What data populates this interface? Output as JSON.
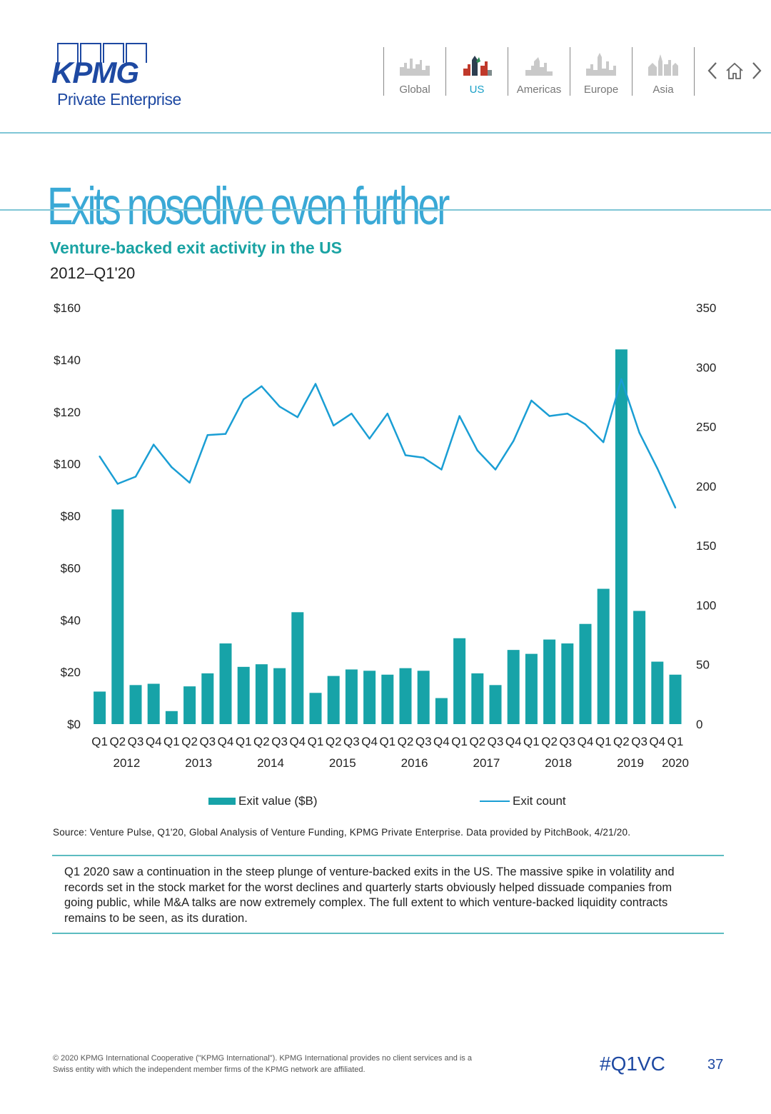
{
  "brand": {
    "logo_text": "KPMG",
    "subtitle": "Private Enterprise",
    "primary_color": "#1e49a2",
    "accent_color": "#1aa3a3"
  },
  "nav": {
    "items": [
      {
        "label": "Global",
        "active": false
      },
      {
        "label": "US",
        "active": true
      },
      {
        "label": "Americas",
        "active": false
      },
      {
        "label": "Europe",
        "active": false
      },
      {
        "label": "Asia",
        "active": false
      }
    ],
    "icons": [
      "chevron-left-icon",
      "home-icon",
      "chevron-right-icon"
    ]
  },
  "page": {
    "title": "Exits nosedive even further",
    "chart_title": "Venture-backed exit activity in the US",
    "chart_subtitle": "2012–Q1'20",
    "source": "Source: Venture Pulse, Q1'20, Global Analysis of Venture Funding, KPMG Private Enterprise. Data provided by PitchBook, 4/21/20.",
    "commentary": "Q1 2020 saw a continuation in the steep plunge of venture-backed exits in the US. The massive spike in volatility and records set in the stock market for the worst declines and quarterly starts obviously helped dissuade companies from going public, while M&A talks are now extremely complex. The full extent to which venture-backed liquidity contracts remains to be seen, as its duration."
  },
  "chart_data": {
    "type": "bar+line",
    "categories": [
      "Q1",
      "Q2",
      "Q3",
      "Q4",
      "Q1",
      "Q2",
      "Q3",
      "Q4",
      "Q1",
      "Q2",
      "Q3",
      "Q4",
      "Q1",
      "Q2",
      "Q3",
      "Q4",
      "Q1",
      "Q2",
      "Q3",
      "Q4",
      "Q1",
      "Q2",
      "Q3",
      "Q4",
      "Q1",
      "Q2",
      "Q3",
      "Q4",
      "Q1",
      "Q2",
      "Q3",
      "Q4",
      "Q1"
    ],
    "years": [
      {
        "label": "2012",
        "quarters": [
          0,
          3
        ]
      },
      {
        "label": "2013",
        "quarters": [
          4,
          7
        ]
      },
      {
        "label": "2014",
        "quarters": [
          8,
          11
        ]
      },
      {
        "label": "2015",
        "quarters": [
          12,
          15
        ]
      },
      {
        "label": "2016",
        "quarters": [
          16,
          19
        ]
      },
      {
        "label": "2017",
        "quarters": [
          20,
          23
        ]
      },
      {
        "label": "2018",
        "quarters": [
          24,
          27
        ]
      },
      {
        "label": "2019",
        "quarters": [
          28,
          31
        ]
      },
      {
        "label": "2020",
        "quarters": [
          32,
          32
        ]
      }
    ],
    "series": [
      {
        "name": "Exit value ($B)",
        "type": "bar",
        "axis": "left",
        "color": "#17a3a8",
        "values": [
          12.5,
          82.5,
          15,
          15.5,
          5,
          14.5,
          19.5,
          31,
          22,
          23,
          21.5,
          43,
          12,
          18.5,
          21,
          20.5,
          19,
          21.5,
          20.5,
          10,
          33,
          19.5,
          15,
          28.5,
          27,
          32.5,
          31,
          38.5,
          52,
          144,
          43.5,
          24,
          19
        ]
      },
      {
        "name": "Exit count",
        "type": "line",
        "axis": "right",
        "color": "#1a9ed4",
        "values": [
          225,
          202,
          208,
          235,
          216,
          203,
          243,
          244,
          273,
          284,
          267,
          258,
          286,
          251,
          261,
          240,
          261,
          226,
          224,
          214,
          259,
          230,
          214,
          238,
          272,
          259,
          261,
          252,
          237,
          290,
          245,
          215,
          182
        ]
      }
    ],
    "y_left": {
      "min": 0,
      "max": 160,
      "ticks": [
        "$0",
        "$20",
        "$40",
        "$60",
        "$80",
        "$100",
        "$120",
        "$140",
        "$160"
      ]
    },
    "y_right": {
      "min": 0,
      "max": 350,
      "ticks": [
        "0",
        "50",
        "100",
        "150",
        "200",
        "250",
        "300",
        "350"
      ]
    },
    "legend_position": "bottom",
    "grid": false
  },
  "footer": {
    "copyright": "© 2020 KPMG International Cooperative (\"KPMG International\"). KPMG International provides no client services and is a Swiss entity with which the independent member firms of the KPMG network are affiliated.",
    "hashtag": "#Q1VC",
    "page_number": "37"
  }
}
